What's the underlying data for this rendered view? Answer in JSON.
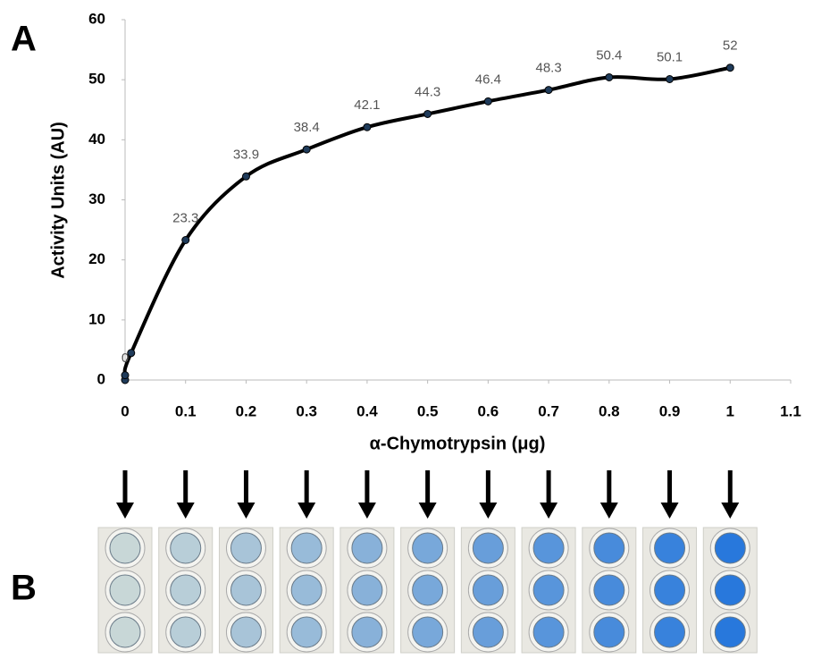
{
  "chart_data": {
    "type": "line",
    "panel_labels": [
      "A",
      "B"
    ],
    "x_label": "α-Chymotrypsin (μg)",
    "y_label": "Activity Units (AU)",
    "x": [
      0,
      0,
      0.01,
      0.1,
      0.2,
      0.3,
      0.4,
      0.5,
      0.6,
      0.7,
      0.8,
      0.9,
      1
    ],
    "values": [
      0,
      0.8,
      4.5,
      23.3,
      33.9,
      38.4,
      42.1,
      44.3,
      46.4,
      48.3,
      50.4,
      50.1,
      52
    ],
    "value_labels": [
      "0",
      null,
      null,
      "23.3",
      "33.9",
      "38.4",
      "42.1",
      "44.3",
      "46.4",
      "48.3",
      "50.4",
      "50.1",
      "52"
    ],
    "color": "#000000",
    "marker_color": "#1f3b5a",
    "xlim": [
      0,
      1.1
    ],
    "xticks": [
      0,
      0.1,
      0.2,
      0.3,
      0.4,
      0.5,
      0.6,
      0.7,
      0.8,
      0.9,
      1,
      1.1
    ],
    "ylim": [
      0,
      60
    ],
    "yticks": [
      0,
      10,
      20,
      30,
      40,
      50,
      60
    ],
    "grid": false
  }
}
